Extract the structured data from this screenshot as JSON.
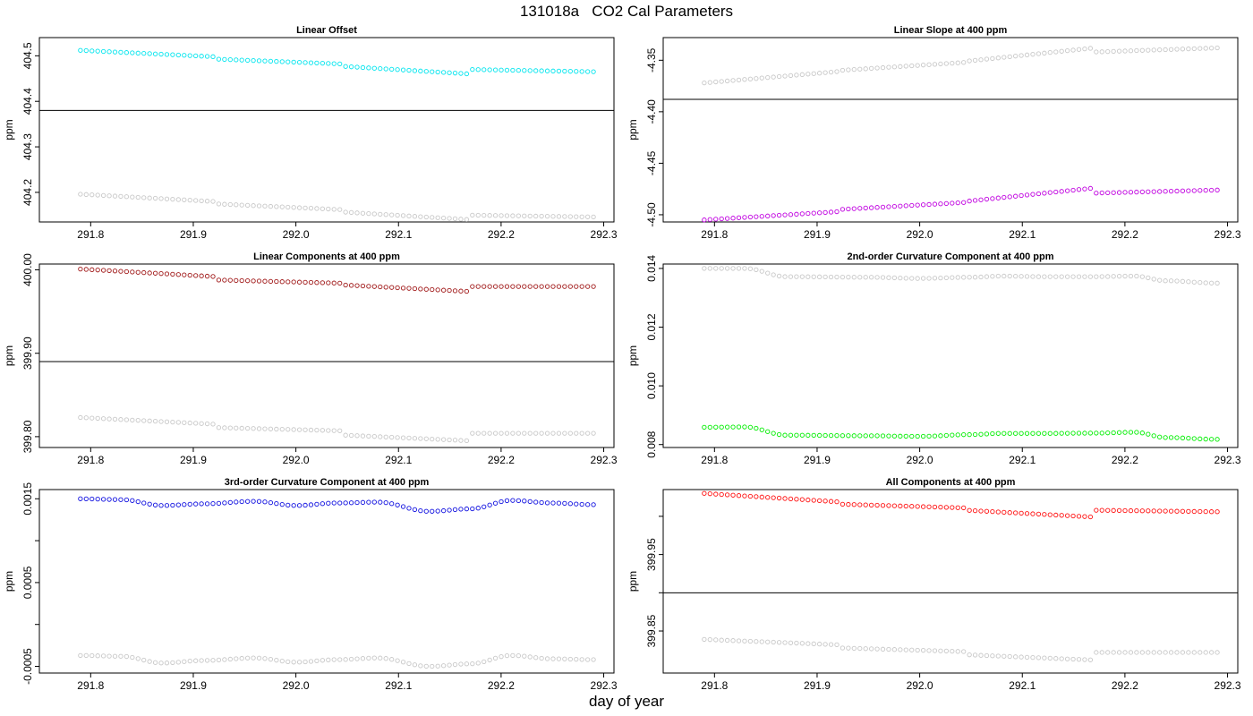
{
  "figure": {
    "title": "131018a   CO2 Cal Parameters",
    "xlabel": "day of year"
  },
  "chart_data": [
    {
      "type": "scatter",
      "title": "Linear Offset",
      "ylabel": "ppm",
      "xlim": [
        291.75,
        292.31
      ],
      "ylim": [
        404.135,
        404.54
      ],
      "x_ticks": [
        "291.8",
        "291.9",
        "292.0",
        "292.1",
        "292.2",
        "292.3"
      ],
      "y_ticks": [
        "404.2",
        "404.3",
        "404.4",
        "404.5"
      ],
      "hline": 404.38,
      "x_range": [
        291.79,
        292.29
      ],
      "segments": [
        {
          "from": 291.79,
          "to": 291.92,
          "upper": [
            404.512,
            404.498
          ],
          "lower": [
            404.196,
            404.18
          ]
        },
        {
          "from": 291.92,
          "to": 292.045,
          "upper": [
            404.493,
            404.482
          ],
          "lower": [
            404.175,
            404.162
          ]
        },
        {
          "from": 292.045,
          "to": 292.17,
          "upper": [
            404.477,
            404.46
          ],
          "lower": [
            404.157,
            404.14
          ]
        },
        {
          "from": 292.17,
          "to": 292.29,
          "upper": [
            404.47,
            404.465
          ],
          "lower": [
            404.15,
            404.146
          ]
        }
      ],
      "series": [
        {
          "color": "#00e5ee"
        },
        {
          "color": "#c8c8c8"
        }
      ]
    },
    {
      "type": "scatter",
      "title": "Linear Slope at 400 ppm",
      "ylabel": "ppm",
      "xlim": [
        291.75,
        292.31
      ],
      "ylim": [
        -4.507,
        -4.328
      ],
      "x_ticks": [
        "291.8",
        "291.9",
        "292.0",
        "292.1",
        "292.2",
        "292.3"
      ],
      "y_ticks": [
        "-4.50",
        "-4.45",
        "-4.40",
        "-4.35"
      ],
      "hline": -4.388,
      "x_range": [
        291.79,
        292.29
      ],
      "segments": [
        {
          "from": 291.79,
          "to": 291.92,
          "upper": [
            -4.372,
            -4.361
          ],
          "lower": [
            -4.505,
            -4.497
          ]
        },
        {
          "from": 291.92,
          "to": 292.045,
          "upper": [
            -4.36,
            -4.352
          ],
          "lower": [
            -4.495,
            -4.488
          ]
        },
        {
          "from": 292.045,
          "to": 292.17,
          "upper": [
            -4.351,
            -4.338
          ],
          "lower": [
            -4.487,
            -4.474
          ]
        },
        {
          "from": 292.17,
          "to": 292.29,
          "upper": [
            -4.342,
            -4.338
          ],
          "lower": [
            -4.479,
            -4.476
          ]
        }
      ],
      "series": [
        {
          "color": "#c000e0"
        },
        {
          "color": "#c8c8c8"
        }
      ]
    },
    {
      "type": "scatter",
      "title": "Linear Components at 400 ppm",
      "ylabel": "ppm",
      "xlim": [
        291.75,
        292.31
      ],
      "ylim": [
        399.787,
        400.007
      ],
      "x_ticks": [
        "291.8",
        "291.9",
        "292.0",
        "292.1",
        "292.2",
        "292.3"
      ],
      "y_ticks": [
        "399.80",
        "399.90",
        "400.00"
      ],
      "hline": 399.89,
      "x_range": [
        291.79,
        292.29
      ],
      "segments": [
        {
          "from": 291.79,
          "to": 291.92,
          "upper": [
            400.001,
            399.992
          ],
          "lower": [
            399.823,
            399.815
          ]
        },
        {
          "from": 291.92,
          "to": 292.045,
          "upper": [
            399.988,
            399.984
          ],
          "lower": [
            399.811,
            399.807
          ]
        },
        {
          "from": 292.045,
          "to": 292.17,
          "upper": [
            399.982,
            399.974
          ],
          "lower": [
            399.802,
            399.795
          ]
        },
        {
          "from": 292.17,
          "to": 292.29,
          "upper": [
            399.98,
            399.98
          ],
          "lower": [
            399.804,
            399.804
          ]
        }
      ],
      "series": [
        {
          "color": "#a01818"
        },
        {
          "color": "#c8c8c8"
        }
      ]
    },
    {
      "type": "scatter",
      "title": "2nd-order Curvature Component at 400 ppm",
      "ylabel": "ppm",
      "xlim": [
        291.75,
        292.31
      ],
      "ylim": [
        0.0079,
        0.01415
      ],
      "x_ticks": [
        "291.8",
        "291.9",
        "292.0",
        "292.1",
        "292.2",
        "292.3"
      ],
      "y_ticks": [
        "0.008",
        "0.010",
        "0.012",
        "0.014"
      ],
      "x_range": [
        291.79,
        292.29
      ],
      "upper_points": [
        [
          291.79,
          0.014
        ],
        [
          291.83,
          0.014
        ],
        [
          291.87,
          0.01372
        ],
        [
          291.95,
          0.0137
        ],
        [
          292.0,
          0.01366
        ],
        [
          292.05,
          0.0137
        ],
        [
          292.08,
          0.01374
        ],
        [
          292.12,
          0.01372
        ],
        [
          292.17,
          0.01372
        ],
        [
          292.21,
          0.01374
        ],
        [
          292.24,
          0.01358
        ],
        [
          292.29,
          0.0135
        ]
      ],
      "lower_points": [
        [
          291.79,
          0.00859
        ],
        [
          291.83,
          0.0086
        ],
        [
          291.87,
          0.00832
        ],
        [
          291.95,
          0.0083
        ],
        [
          292.0,
          0.00828
        ],
        [
          292.05,
          0.00834
        ],
        [
          292.08,
          0.00838
        ],
        [
          292.12,
          0.00838
        ],
        [
          292.17,
          0.00839
        ],
        [
          292.21,
          0.00842
        ],
        [
          292.24,
          0.00824
        ],
        [
          292.29,
          0.00818
        ]
      ],
      "series": [
        {
          "color": "#00ee00"
        },
        {
          "color": "#c8c8c8"
        }
      ]
    },
    {
      "type": "scatter",
      "title": "3rd-order Curvature Component at 400 ppm",
      "ylabel": "ppm",
      "xlim": [
        291.75,
        292.31
      ],
      "ylim": [
        -0.00058,
        0.00161
      ],
      "x_ticks": [
        "291.8",
        "291.9",
        "292.0",
        "292.1",
        "292.2",
        "292.3"
      ],
      "y_ticks": [
        "-0.0005",
        "",
        "0.0005",
        "",
        "0.0015"
      ],
      "y_tick_values": [
        -0.0005,
        0.0,
        0.0005,
        0.001,
        0.0015
      ],
      "x_range": [
        291.79,
        292.29
      ],
      "upper_points": [
        [
          291.79,
          0.0015
        ],
        [
          291.83,
          0.00149
        ],
        [
          291.87,
          0.00142
        ],
        [
          291.91,
          0.00144
        ],
        [
          291.96,
          0.00147
        ],
        [
          292.0,
          0.00142
        ],
        [
          292.04,
          0.00145
        ],
        [
          292.08,
          0.00146
        ],
        [
          292.13,
          0.00135
        ],
        [
          292.17,
          0.00138
        ],
        [
          292.21,
          0.00148
        ],
        [
          292.25,
          0.00145
        ],
        [
          292.29,
          0.00143
        ]
      ],
      "lower_points": [
        [
          291.79,
          -0.00037
        ],
        [
          291.83,
          -0.00038
        ],
        [
          291.87,
          -0.00046
        ],
        [
          291.91,
          -0.00043
        ],
        [
          291.96,
          -0.0004
        ],
        [
          292.0,
          -0.00045
        ],
        [
          292.04,
          -0.00042
        ],
        [
          292.08,
          -0.0004
        ],
        [
          292.13,
          -0.0005
        ],
        [
          292.17,
          -0.00047
        ],
        [
          292.21,
          -0.00037
        ],
        [
          292.25,
          -0.00041
        ],
        [
          292.29,
          -0.00042
        ]
      ],
      "series": [
        {
          "color": "#1010e0"
        },
        {
          "color": "#c8c8c8"
        }
      ]
    },
    {
      "type": "scatter",
      "title": "All Components at 400 ppm",
      "ylabel": "ppm",
      "xlim": [
        291.75,
        292.31
      ],
      "ylim": [
        399.795,
        400.035
      ],
      "x_ticks": [
        "291.8",
        "291.9",
        "292.0",
        "292.1",
        "292.2",
        "292.3"
      ],
      "y_ticks": [
        "399.85",
        "",
        "399.95",
        ""
      ],
      "y_tick_values": [
        399.85,
        399.9,
        399.95,
        400.0
      ],
      "hline": 399.9,
      "x_range": [
        291.79,
        292.29
      ],
      "segments": [
        {
          "from": 291.79,
          "to": 291.92,
          "upper": [
            400.03,
            400.019
          ],
          "lower": [
            399.839,
            399.832
          ]
        },
        {
          "from": 291.92,
          "to": 292.045,
          "upper": [
            400.016,
            400.011
          ],
          "lower": [
            399.828,
            399.823
          ]
        },
        {
          "from": 292.045,
          "to": 292.17,
          "upper": [
            400.008,
            399.999
          ],
          "lower": [
            399.819,
            399.812
          ]
        },
        {
          "from": 292.17,
          "to": 292.29,
          "upper": [
            400.008,
            400.006
          ],
          "lower": [
            399.822,
            399.822
          ]
        }
      ],
      "series": [
        {
          "color": "#ff1010"
        },
        {
          "color": "#c8c8c8"
        }
      ]
    }
  ]
}
